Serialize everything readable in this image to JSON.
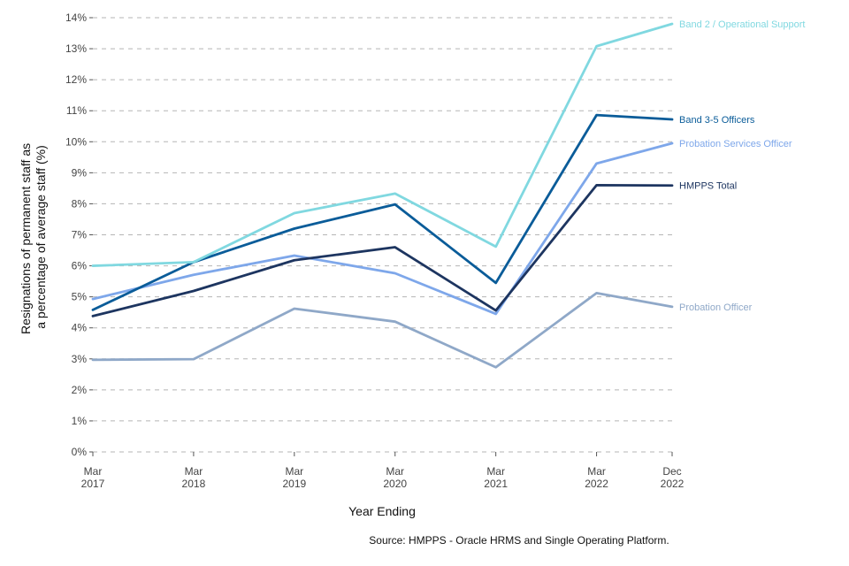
{
  "chart_data": {
    "type": "line",
    "title": "",
    "xlabel": "Year Ending",
    "ylabel": "Resignations of permanent staff as a percentage of average staff (%)",
    "ylabel_lines": [
      "Resignations of permanent staff as",
      "a percentage of average staff (%)"
    ],
    "source": "Source: HMPPS - Oracle HRMS and Single Operating Platform.",
    "x_positions": [
      2017,
      2018,
      2019,
      2020,
      2021,
      2022,
      2022.75
    ],
    "x_ticks": [
      {
        "line1": "Mar",
        "line2": "2017"
      },
      {
        "line1": "Mar",
        "line2": "2018"
      },
      {
        "line1": "Mar",
        "line2": "2019"
      },
      {
        "line1": "Mar",
        "line2": "2020"
      },
      {
        "line1": "Mar",
        "line2": "2021"
      },
      {
        "line1": "Mar",
        "line2": "2022"
      },
      {
        "line1": "Dec",
        "line2": "2022"
      }
    ],
    "ylim": [
      0,
      14
    ],
    "y_ticks": [
      "0%",
      "1%",
      "2%",
      "3%",
      "4%",
      "5%",
      "6%",
      "7%",
      "8%",
      "9%",
      "10%",
      "11%",
      "12%",
      "13%",
      "14%"
    ],
    "grid": true,
    "series": [
      {
        "name": "Probation Officer",
        "color": "#8fa8c8",
        "values": [
          2.97,
          2.99,
          4.62,
          4.2,
          2.73,
          5.12,
          4.68
        ]
      },
      {
        "name": "Probation Services Officer",
        "color": "#7ea7ea",
        "values": [
          4.93,
          5.71,
          6.33,
          5.76,
          4.45,
          9.3,
          9.95
        ]
      },
      {
        "name": "HMPPS Total",
        "color": "#1d3560",
        "values": [
          4.38,
          5.19,
          6.18,
          6.6,
          4.56,
          8.6,
          8.59
        ]
      },
      {
        "name": "Band 3-5 Officers",
        "color": "#0a5c99",
        "values": [
          4.58,
          6.12,
          7.2,
          7.98,
          5.45,
          10.86,
          10.72
        ]
      },
      {
        "name": "Band 2 / Operational Support",
        "color": "#80d8e0",
        "values": [
          6.0,
          6.12,
          7.7,
          8.33,
          6.62,
          13.08,
          13.8
        ]
      }
    ]
  }
}
